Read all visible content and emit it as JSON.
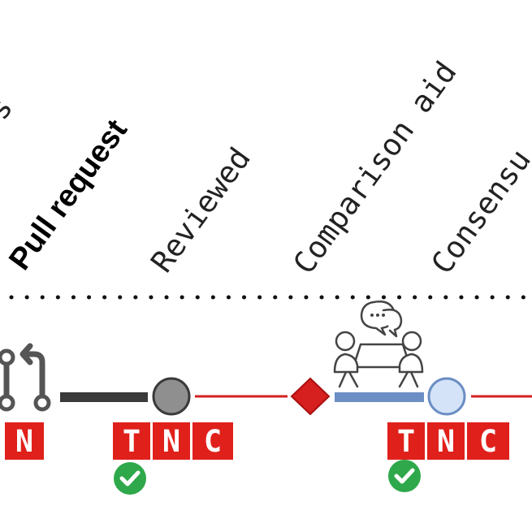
{
  "labels": {
    "partial_left": "s",
    "pull_request": "Pull request",
    "reviewed": "Reviewed",
    "comparison_aid": "Comparison aid",
    "consensus_partial": "Consensu"
  },
  "badges": {
    "group_left": [
      "N"
    ],
    "group_reviewed": [
      "T",
      "N",
      "C"
    ],
    "group_comparison": [
      "T",
      "N",
      "C"
    ]
  },
  "colors": {
    "badge_red": "#e0201b",
    "line_red": "#d62020",
    "diamond_red": "#d61f1f",
    "node_gray": "#8f8f8f",
    "node_light_blue": "#d4e3f7",
    "bar_blue": "#6b8ec4",
    "bar_dark": "#3a3a3a",
    "check_green": "#2ea84a"
  },
  "icons": {
    "pull_request": "git-pull-request-icon",
    "meeting": "meeting-discussion-icon",
    "check": "check-circle-icon"
  }
}
